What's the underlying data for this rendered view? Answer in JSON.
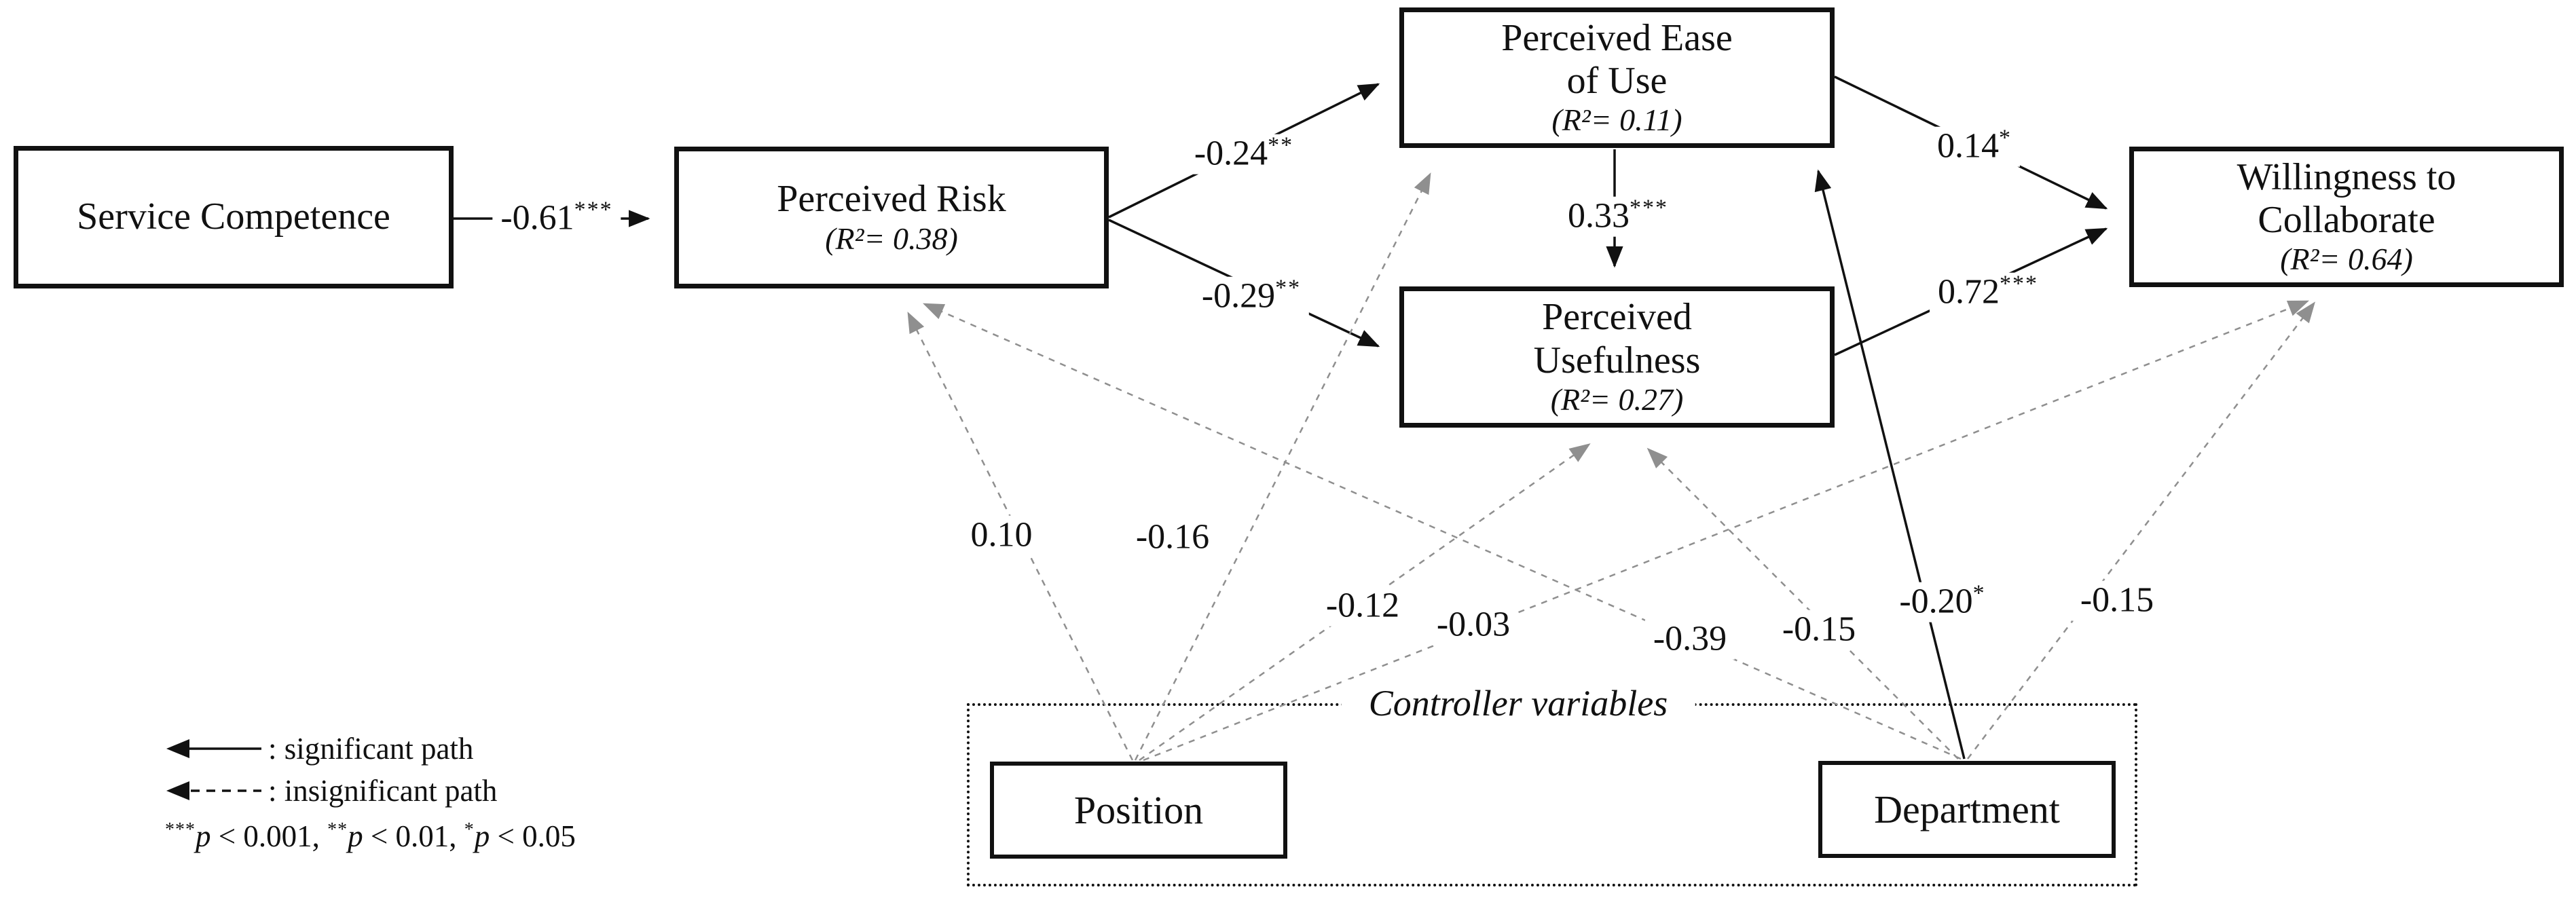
{
  "figure": {
    "background": "#ffffff",
    "significant_color": "#111111",
    "insignificant_color": "#8f8f8f"
  },
  "nodes": {
    "service_competence": {
      "lines": [
        "Service Competence"
      ]
    },
    "perceived_risk": {
      "lines": [
        "Perceived Risk"
      ],
      "r2": "(R²= 0.38)"
    },
    "perceived_ease_of_use": {
      "lines": [
        "Perceived Ease",
        "of Use"
      ],
      "r2": "(R²= 0.11)"
    },
    "perceived_usefulness": {
      "lines": [
        "Perceived",
        "Usefulness"
      ],
      "r2": "(R²= 0.27)"
    },
    "willingness_to_collaborate": {
      "lines": [
        "Willingness to",
        "Collaborate"
      ],
      "r2": "(R²= 0.64)"
    },
    "position": {
      "lines": [
        "Position"
      ]
    },
    "department": {
      "lines": [
        "Department"
      ]
    }
  },
  "controller_group": {
    "label": "Controller variables"
  },
  "paths": [
    {
      "id": "sc_pr",
      "from": "Service Competence",
      "to": "Perceived Risk",
      "coef": "-0.61",
      "stars": "***",
      "significant": true
    },
    {
      "id": "pr_peou",
      "from": "Perceived Risk",
      "to": "Perceived Ease of Use",
      "coef": "-0.24",
      "stars": "**",
      "significant": true
    },
    {
      "id": "pr_pu",
      "from": "Perceived Risk",
      "to": "Perceived Usefulness",
      "coef": "-0.29",
      "stars": "**",
      "significant": true
    },
    {
      "id": "peou_pu",
      "from": "Perceived Ease of Use",
      "to": "Perceived Usefulness",
      "coef": "0.33",
      "stars": "***",
      "significant": true
    },
    {
      "id": "peou_wtc",
      "from": "Perceived Ease of Use",
      "to": "Willingness to Collaborate",
      "coef": "0.14",
      "stars": "*",
      "significant": true
    },
    {
      "id": "pu_wtc",
      "from": "Perceived Usefulness",
      "to": "Willingness to Collaborate",
      "coef": "0.72",
      "stars": "***",
      "significant": true
    },
    {
      "id": "dept_peou",
      "from": "Department",
      "to": "Perceived Ease of Use",
      "coef": "-0.20",
      "stars": "*",
      "significant": true
    },
    {
      "id": "pos_pr",
      "from": "Position",
      "to": "Perceived Risk",
      "coef": "0.10",
      "stars": "",
      "significant": false
    },
    {
      "id": "pos_peou",
      "from": "Position",
      "to": "Perceived Ease of Use",
      "coef": "-0.16",
      "stars": "",
      "significant": false
    },
    {
      "id": "pos_pu",
      "from": "Position",
      "to": "Perceived Usefulness",
      "coef": "-0.12",
      "stars": "",
      "significant": false
    },
    {
      "id": "pos_wtc",
      "from": "Position",
      "to": "Willingness to Collaborate",
      "coef": "-0.03",
      "stars": "",
      "significant": false
    },
    {
      "id": "dept_pr",
      "from": "Department",
      "to": "Perceived Risk",
      "coef": "-0.39",
      "stars": "",
      "significant": false
    },
    {
      "id": "dept_pu",
      "from": "Department",
      "to": "Perceived Usefulness",
      "coef": "-0.15",
      "stars": "",
      "significant": false
    },
    {
      "id": "dept_wtc",
      "from": "Department",
      "to": "Willingness to Collaborate",
      "coef": "-0.15",
      "stars": "",
      "significant": false
    }
  ],
  "legend": {
    "significant": ": significant path",
    "insignificant": ": insignificant path",
    "note_segments": [
      {
        "stars": "***",
        "text": "p < 0.001, "
      },
      {
        "stars": "**",
        "text": "p < 0.01, "
      },
      {
        "stars": "*",
        "text": "p < 0.05"
      }
    ]
  }
}
